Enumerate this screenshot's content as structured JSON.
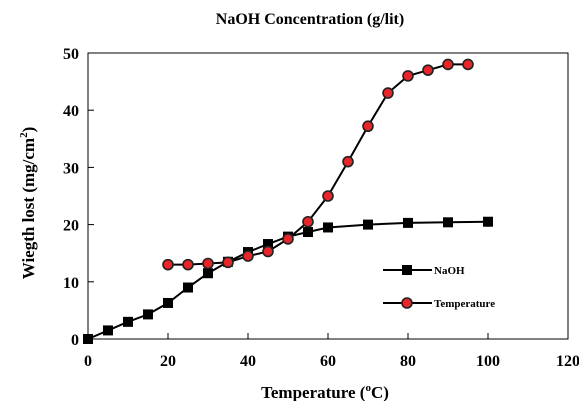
{
  "chart_data": {
    "type": "line",
    "title": "NaOH Concentration (g/lit)",
    "xlabel": "Temperature (°C)",
    "ylabel": "Wiegth lost (mg/cm²)",
    "xlim": [
      0,
      120
    ],
    "ylim": [
      0,
      50
    ],
    "x_ticks": [
      "0",
      "20",
      "40",
      "60",
      "80",
      "100",
      "120"
    ],
    "y_ticks": [
      "0",
      "10",
      "20",
      "30",
      "40",
      "50"
    ],
    "grid": false,
    "legend_position": "right",
    "series": [
      {
        "name": "NaOH",
        "marker": "square",
        "color": "#000000",
        "x": [
          0,
          5,
          10,
          15,
          20,
          25,
          30,
          35,
          40,
          45,
          50,
          55,
          60,
          70,
          80,
          90,
          100
        ],
        "y": [
          0,
          1.5,
          3,
          4.3,
          6.3,
          9,
          11.5,
          13.5,
          15.2,
          16.6,
          17.9,
          18.7,
          19.5,
          20.0,
          20.3,
          20.4,
          20.5
        ]
      },
      {
        "name": "Temperature",
        "marker": "circle",
        "color": "#000000",
        "marker_fill": "#e8262a",
        "x": [
          20,
          25,
          30,
          35,
          40,
          45,
          50,
          55,
          60,
          65,
          70,
          75,
          80,
          85,
          90,
          95
        ],
        "y": [
          13,
          13,
          13.2,
          13.4,
          14.5,
          15.3,
          17.5,
          20.5,
          25,
          31,
          37.2,
          43,
          46,
          47,
          48,
          48
        ]
      }
    ]
  }
}
